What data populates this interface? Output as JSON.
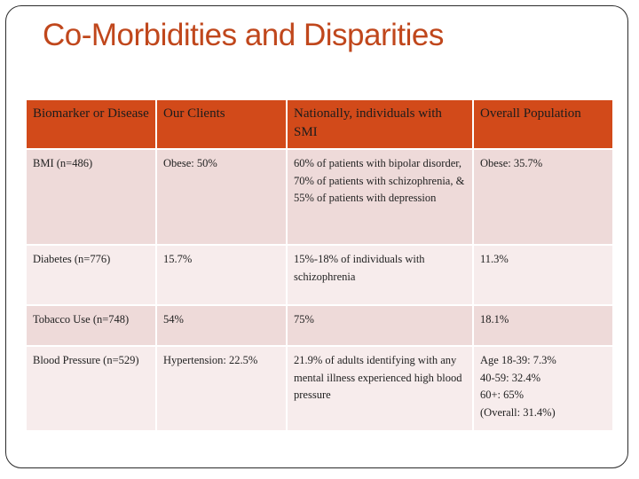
{
  "slide": {
    "title": "Co-Morbidities and Disparities"
  },
  "table": {
    "headers": [
      "Biomarker or Disease",
      "Our Clients",
      "Nationally, individuals with SMI",
      "Overall Population"
    ],
    "rows": [
      [
        "BMI (n=486)",
        "Obese: 50%",
        "60% of patients with bipolar disorder, 70% of patients with schizophrenia, & 55% of patients with depression",
        "Obese: 35.7%"
      ],
      [
        "Diabetes (n=776)",
        "15.7%",
        "15%-18% of individuals with schizophrenia",
        "11.3%"
      ],
      [
        "Tobacco Use (n=748)",
        "54%",
        "75%",
        "18.1%"
      ],
      [
        "Blood Pressure (n=529)",
        "Hypertension:  22.5%",
        "21.9% of adults identifying with any mental illness experienced high blood pressure",
        "Age 18-39:  7.3%\n40-59:  32.4%\n60+:  65%\n(Overall:  31.4%)"
      ]
    ]
  },
  "colors": {
    "title": "#c0471c",
    "header_bg": "#d24a1a",
    "row_dark": "#eedad9",
    "row_light": "#f7ecec"
  }
}
